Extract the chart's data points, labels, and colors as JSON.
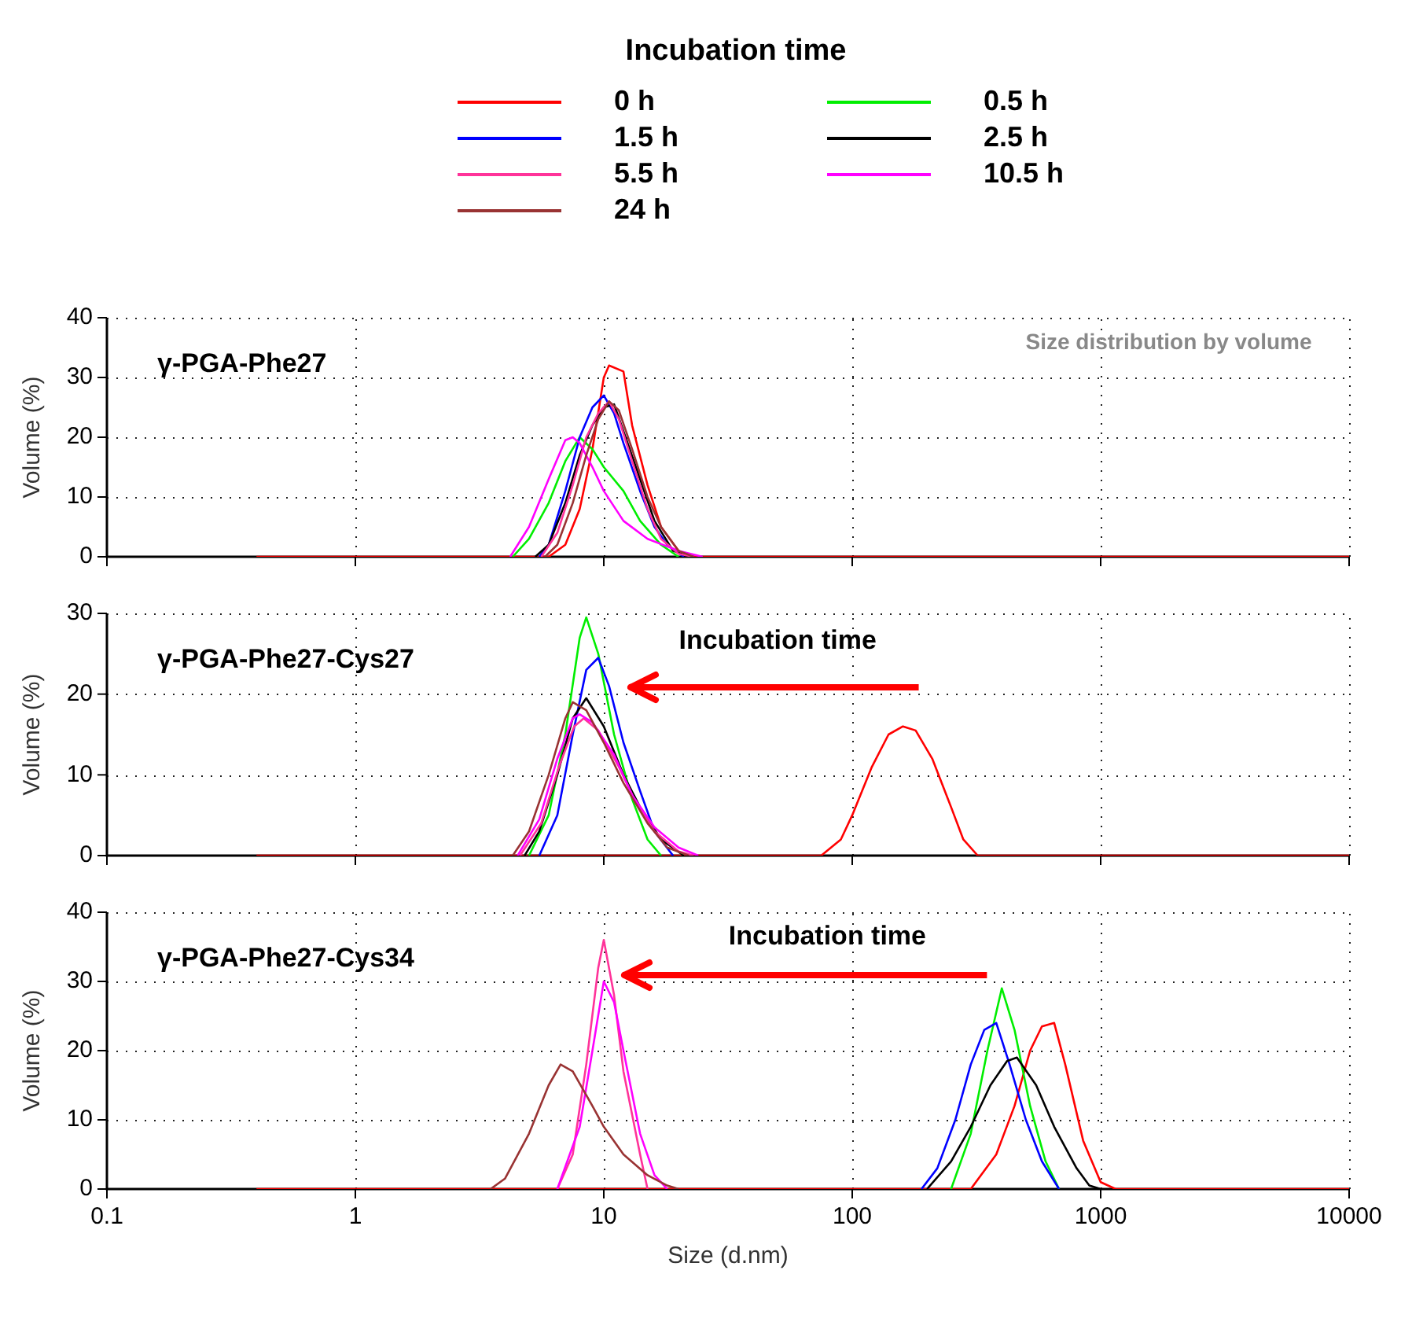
{
  "chart_data": [
    {
      "type": "line",
      "title": "γ-PGA-Phe27",
      "ylabel": "Volume (%)",
      "legend_title": "Incubation time",
      "legend": "top",
      "log": "x",
      "grid": true,
      "tick_labels": "y",
      "annotations": [
        "Size distribution by volume"
      ],
      "xlim": [
        0.1,
        10000
      ],
      "xticks": [
        0.1,
        1,
        10,
        100,
        1000,
        10000
      ],
      "ylim": [
        0,
        40
      ],
      "yticks": [
        0,
        10,
        20,
        30,
        40
      ],
      "series": [
        {
          "name": "0 h",
          "color": "#ff0000",
          "x": [
            0.4,
            6,
            7,
            8,
            9,
            10,
            10.5,
            12,
            13,
            15,
            17,
            20,
            22,
            10000
          ],
          "values": [
            0,
            0,
            2,
            8,
            18,
            30,
            32,
            31,
            22,
            12,
            5,
            1,
            0,
            0
          ]
        },
        {
          "name": "0.5 h",
          "color": "#00ee00",
          "x": [
            4.3,
            5,
            6,
            7,
            8,
            9,
            10,
            12,
            14,
            17,
            20
          ],
          "values": [
            0,
            3,
            9,
            16,
            20,
            18,
            15,
            11,
            6,
            2,
            0
          ]
        },
        {
          "name": "1.5 h",
          "color": "#0000ff",
          "x": [
            5.5,
            6,
            7,
            8,
            9,
            10,
            11,
            12,
            14,
            16,
            18,
            21
          ],
          "values": [
            0,
            2,
            11,
            20,
            25,
            27,
            24,
            19,
            11,
            5,
            2,
            0
          ]
        },
        {
          "name": "2.5 h",
          "color": "#000000",
          "x": [
            5.3,
            6,
            7,
            8,
            9,
            10,
            11,
            12,
            14,
            16,
            19,
            22
          ],
          "values": [
            0,
            2,
            9,
            17,
            22,
            25,
            25.5,
            21,
            13,
            6,
            1,
            0
          ]
        },
        {
          "name": "5.5 h",
          "color": "#ff3399",
          "x": [
            5.6,
            6.5,
            7.5,
            8.5,
            9.5,
            10.5,
            11.5,
            13,
            15,
            17,
            20,
            23
          ],
          "values": [
            0,
            4,
            12,
            20,
            24,
            26,
            23,
            16,
            8,
            3,
            0.5,
            0
          ]
        },
        {
          "name": "10.5 h",
          "color": "#ff00ff",
          "x": [
            4.2,
            5,
            6,
            7,
            7.5,
            8,
            9,
            10,
            12,
            15,
            20,
            25
          ],
          "values": [
            0,
            5,
            13,
            19.5,
            20,
            19,
            15,
            11,
            6,
            3,
            1,
            0
          ]
        },
        {
          "name": "24 h",
          "color": "#993333",
          "x": [
            5.8,
            6.5,
            7.5,
            8.5,
            9.5,
            10.5,
            11.5,
            13,
            15,
            17,
            20,
            23
          ],
          "values": [
            0,
            2,
            9,
            17,
            23,
            26,
            24.5,
            18,
            10,
            5,
            1,
            0
          ]
        }
      ]
    },
    {
      "type": "line",
      "title": "γ-PGA-Phe27-Cys27",
      "ylabel": "Volume (%)",
      "log": "x",
      "grid": true,
      "tick_labels": "y",
      "annotations": [
        "Incubation time"
      ],
      "xlim": [
        0.1,
        10000
      ],
      "xticks": [
        0.1,
        1,
        10,
        100,
        1000,
        10000
      ],
      "ylim": [
        0,
        30
      ],
      "yticks": [
        0,
        10,
        20,
        30
      ],
      "series": [
        {
          "color": "#ff0000",
          "x": [
            0.4,
            75,
            90,
            100,
            120,
            140,
            160,
            180,
            210,
            250,
            280,
            320,
            10000
          ],
          "values": [
            0,
            0,
            2,
            5,
            11,
            15,
            16,
            15.5,
            12,
            6,
            2,
            0,
            0
          ]
        },
        {
          "color": "#00ee00",
          "x": [
            5,
            6,
            7,
            8,
            8.5,
            9.5,
            11,
            13,
            15,
            17
          ],
          "values": [
            0,
            5,
            15,
            27,
            29.5,
            25,
            15,
            7,
            2,
            0
          ]
        },
        {
          "color": "#0000ff",
          "x": [
            5.5,
            6.5,
            7.5,
            8.5,
            9.5,
            10.5,
            12,
            14,
            16,
            19
          ],
          "values": [
            0,
            5,
            15,
            23,
            24.5,
            21,
            14,
            8,
            3,
            0
          ]
        },
        {
          "color": "#000000",
          "x": [
            4.8,
            5.5,
            6.5,
            7.5,
            8.5,
            10,
            12,
            14,
            17,
            21
          ],
          "values": [
            0,
            3,
            10,
            17,
            19.5,
            16,
            10,
            6,
            2,
            0
          ]
        },
        {
          "color": "#ff3399",
          "x": [
            4.6,
            5.6,
            6.6,
            7.6,
            8.3,
            9.5,
            11.5,
            13.5,
            16,
            20,
            23
          ],
          "values": [
            0,
            4,
            11,
            16,
            17,
            15.5,
            11,
            6.5,
            3,
            0.5,
            0
          ]
        },
        {
          "color": "#ff00ff",
          "x": [
            4.5,
            5.5,
            6.5,
            7.5,
            8,
            9,
            11,
            13,
            16,
            20,
            24
          ],
          "values": [
            0,
            4.5,
            12,
            17,
            17.5,
            16.5,
            12.5,
            7.5,
            3.5,
            1,
            0
          ]
        },
        {
          "color": "#993333",
          "x": [
            4.3,
            5,
            6,
            7,
            7.5,
            8.5,
            10,
            12,
            15,
            18,
            22
          ],
          "values": [
            0,
            3,
            10,
            17,
            19,
            18,
            14,
            9,
            4,
            1,
            0
          ]
        }
      ]
    },
    {
      "type": "line",
      "title": "γ-PGA-Phe27-Cys34",
      "ylabel": "Volume (%)",
      "xlabel": "Size (d.nm)",
      "log": "x",
      "grid": true,
      "annotations": [
        "Incubation time"
      ],
      "xlim": [
        0.1,
        10000
      ],
      "xticks": [
        0.1,
        1,
        10,
        100,
        1000,
        10000
      ],
      "ylim": [
        0,
        40
      ],
      "yticks": [
        0,
        10,
        20,
        30,
        40
      ],
      "series": [
        {
          "color": "#ff0000",
          "x": [
            0.4,
            300,
            380,
            450,
            520,
            580,
            650,
            720,
            850,
            1000,
            1150,
            10000
          ],
          "values": [
            0,
            0,
            5,
            12,
            20,
            23.5,
            24,
            18,
            7,
            1,
            0,
            0
          ]
        },
        {
          "color": "#00ee00",
          "x": [
            250,
            300,
            350,
            400,
            450,
            520,
            600,
            680
          ],
          "values": [
            0,
            8,
            20,
            29,
            23,
            12,
            4,
            0
          ]
        },
        {
          "color": "#0000ff",
          "x": [
            190,
            220,
            260,
            300,
            340,
            380,
            430,
            500,
            580,
            680
          ],
          "values": [
            0,
            3,
            10,
            18,
            23,
            24,
            18,
            10,
            4,
            0
          ]
        },
        {
          "color": "#000000",
          "x": [
            200,
            250,
            300,
            360,
            420,
            460,
            550,
            650,
            800,
            900,
            1000
          ],
          "values": [
            0,
            4,
            9,
            15,
            18.5,
            19,
            15,
            9,
            3,
            0.5,
            0
          ]
        },
        {
          "color": "#ff3399",
          "x": [
            6.5,
            7.5,
            8.5,
            9.5,
            10,
            11,
            12,
            14,
            15
          ],
          "values": [
            0,
            5,
            18,
            32,
            36,
            28,
            17,
            5,
            0
          ]
        },
        {
          "color": "#ff00ff",
          "x": [
            6.5,
            8,
            9,
            10,
            11,
            12,
            14,
            16,
            18
          ],
          "values": [
            0,
            9,
            20,
            30,
            27,
            20,
            8,
            2,
            0
          ]
        },
        {
          "color": "#993333",
          "x": [
            3.5,
            4,
            5,
            6,
            6.7,
            7.5,
            9,
            10,
            12,
            15,
            18,
            20
          ],
          "values": [
            0,
            1.5,
            8,
            15,
            18,
            17,
            12,
            9,
            5,
            2,
            0.5,
            0
          ]
        }
      ]
    }
  ]
}
